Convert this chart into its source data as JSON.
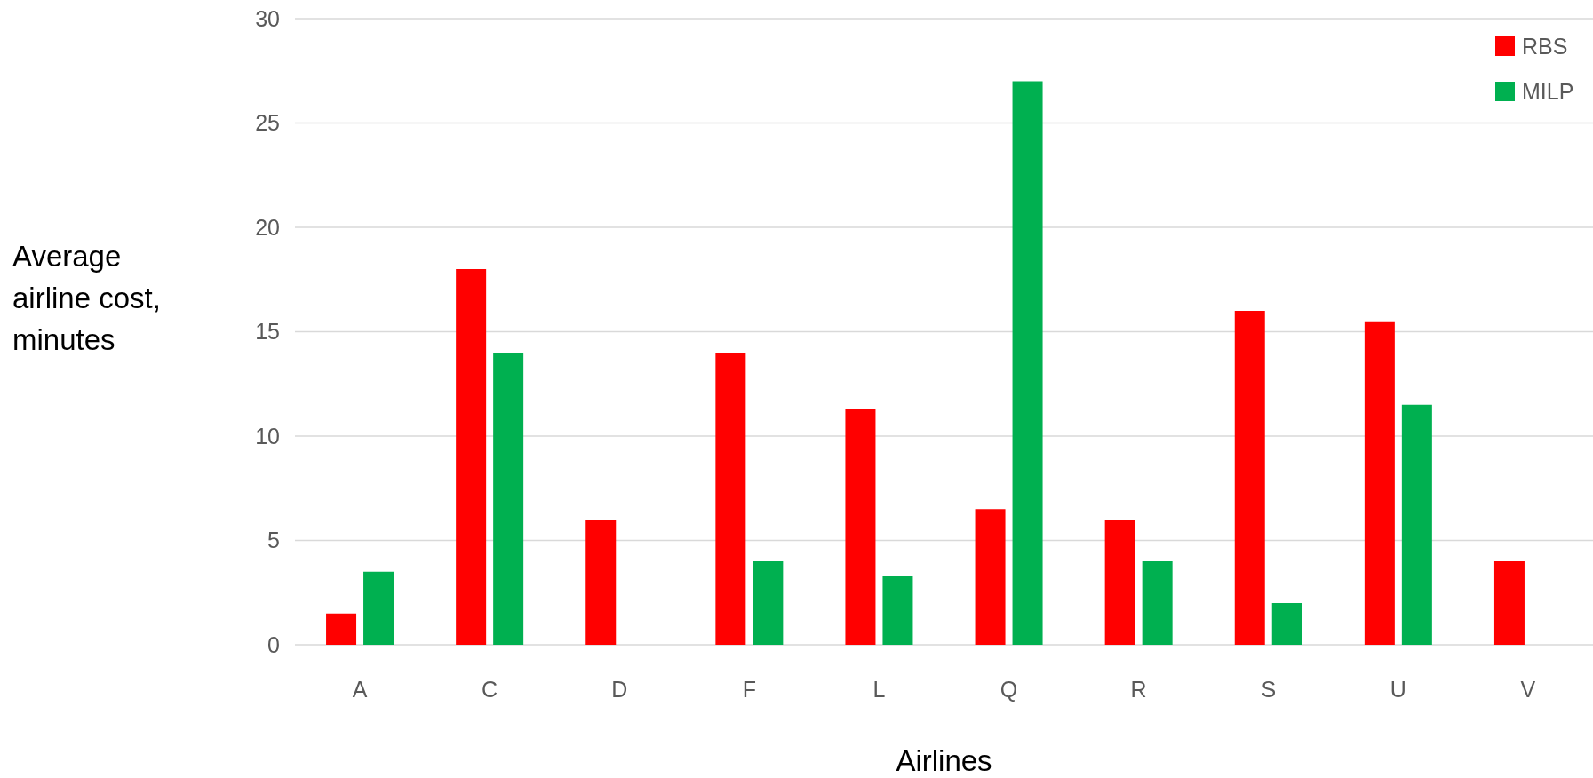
{
  "chart_data": {
    "type": "bar",
    "xlabel": "Airlines",
    "ylabel": "Average airline cost, minutes",
    "categories": [
      "A",
      "C",
      "D",
      "F",
      "L",
      "Q",
      "R",
      "S",
      "U",
      "V"
    ],
    "series": [
      {
        "name": "RBS",
        "color": "#ff0000",
        "values": [
          1.5,
          18,
          6,
          14,
          11.3,
          6.5,
          6,
          16,
          15.5,
          4
        ]
      },
      {
        "name": "MILP",
        "color": "#00b050",
        "values": [
          3.5,
          14,
          null,
          4,
          3.3,
          27,
          4,
          2,
          11.5,
          null
        ]
      }
    ],
    "ylim": [
      0,
      30
    ],
    "yticks": [
      0,
      5,
      10,
      15,
      20,
      25,
      30
    ],
    "grid": "y",
    "legend": "top right"
  }
}
